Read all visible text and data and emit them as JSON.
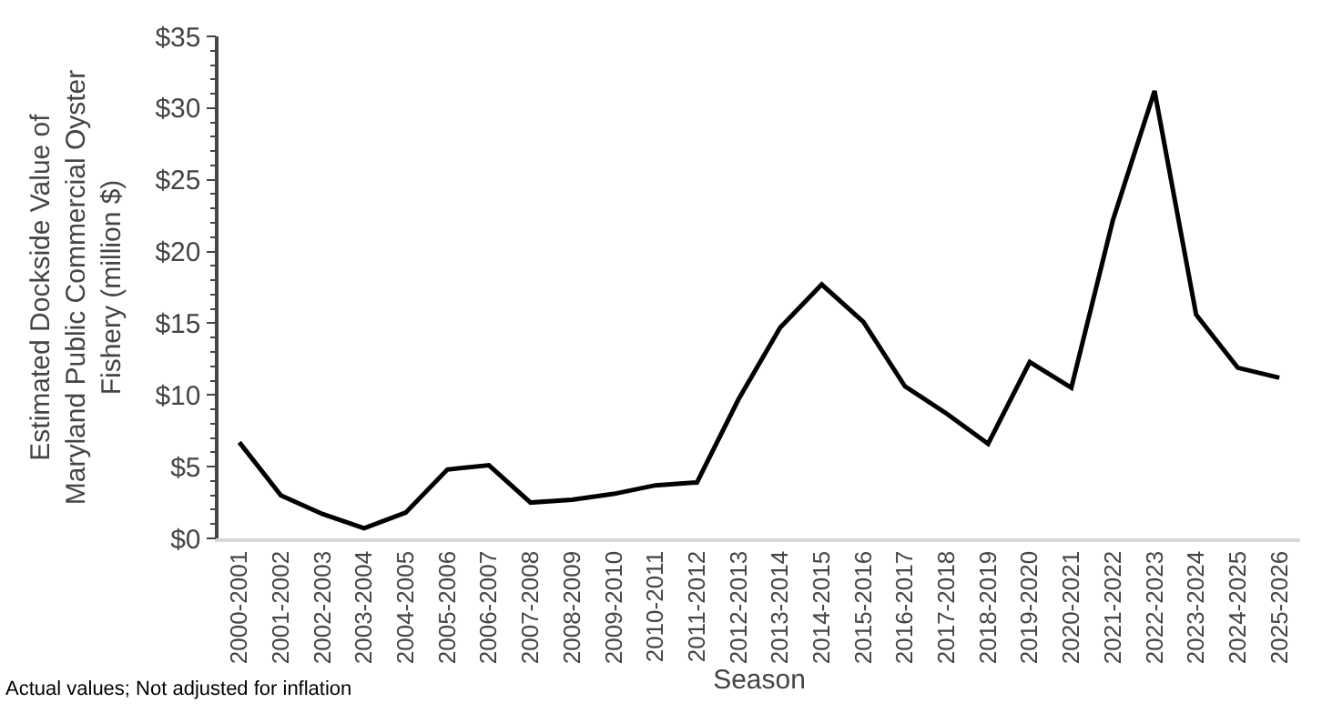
{
  "chart_data": {
    "type": "line",
    "xlabel": "Season",
    "ylabel": "Estimated Dockside Value of\nMaryland Public Commercial Oyster\nFishery (million $)",
    "categories": [
      "2000-2001",
      "2001-2002",
      "2002-2003",
      "2003-2004",
      "2004-2005",
      "2005-2006",
      "2006-2007",
      "2007-2008",
      "2008-2009",
      "2009-2010",
      "2010-2011",
      "2011-2012",
      "2012-2013",
      "2013-2014",
      "2014-2015",
      "2015-2016",
      "2016-2017",
      "2017-2018",
      "2018-2019",
      "2019-2020",
      "2020-2021",
      "2021-2022",
      "2022-2023",
      "2023-2024",
      "2024-2025",
      "2025-2026"
    ],
    "series": [
      {
        "color": "#000000",
        "values": [
          6.7,
          3.0,
          1.7,
          0.7,
          1.8,
          4.8,
          5.1,
          2.5,
          2.7,
          3.1,
          3.7,
          3.9,
          9.7,
          14.7,
          17.7,
          15.1,
          10.6,
          8.7,
          6.6,
          12.3,
          10.5,
          22.2,
          31.2,
          15.6,
          11.9,
          11.2
        ]
      }
    ],
    "ylim": [
      0,
      35
    ],
    "yticks": [
      {
        "value": 0,
        "label": "$0"
      },
      {
        "value": 5,
        "label": "$5"
      },
      {
        "value": 10,
        "label": "$10"
      },
      {
        "value": 15,
        "label": "$15"
      },
      {
        "value": 20,
        "label": "$20"
      },
      {
        "value": 25,
        "label": "$25"
      },
      {
        "value": 30,
        "label": "$30"
      },
      {
        "value": 35,
        "label": "$35"
      }
    ],
    "legend": false,
    "marker": "none",
    "line_style": "solid",
    "annotations": [
      "Actual values; Not adjusted for inflation"
    ]
  }
}
